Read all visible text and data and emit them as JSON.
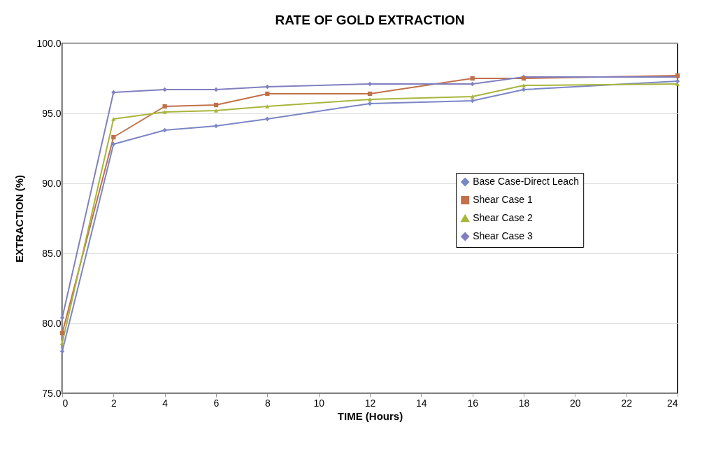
{
  "chart_data": {
    "type": "line",
    "title": "RATE OF GOLD EXTRACTION",
    "xlabel": "TIME (Hours)",
    "ylabel": "EXTRACTION (%)",
    "x": [
      0,
      2,
      4,
      6,
      8,
      12,
      16,
      18,
      24
    ],
    "series": [
      {
        "name": "Base Case-Direct Leach",
        "color": "#7b86c6",
        "marker": "diamond",
        "values": [
          78.0,
          92.8,
          93.8,
          94.1,
          94.6,
          95.7,
          95.9,
          96.7,
          97.3
        ]
      },
      {
        "name": "Shear Case 1",
        "color": "#c0714a",
        "marker": "square",
        "values": [
          79.3,
          93.3,
          95.5,
          95.6,
          96.4,
          96.4,
          97.5,
          97.5,
          97.7
        ]
      },
      {
        "name": "Shear Case 2",
        "color": "#a8b53c",
        "marker": "triangle",
        "values": [
          78.6,
          94.6,
          95.1,
          95.2,
          95.5,
          96.0,
          96.2,
          97.0,
          97.1
        ]
      },
      {
        "name": "Shear Case 3",
        "color": "#8080c0",
        "marker": "diamond",
        "values": [
          80.4,
          96.5,
          96.7,
          96.7,
          96.9,
          97.1,
          97.1,
          97.6,
          97.6
        ]
      }
    ],
    "xlim": [
      0,
      24
    ],
    "xticks": [
      0,
      2,
      4,
      6,
      8,
      10,
      12,
      14,
      16,
      18,
      20,
      22,
      24
    ],
    "ylim": [
      75,
      100
    ],
    "yticks": [
      {
        "value": 75,
        "label": "75.0"
      },
      {
        "value": 80,
        "label": "80.0"
      },
      {
        "value": 85,
        "label": "85.0"
      },
      {
        "value": 90,
        "label": "90.0"
      },
      {
        "value": 95,
        "label": "95.0"
      },
      {
        "value": 100,
        "label": "100.0"
      }
    ],
    "grid": "y",
    "legend": "right",
    "line_style": "solid"
  }
}
